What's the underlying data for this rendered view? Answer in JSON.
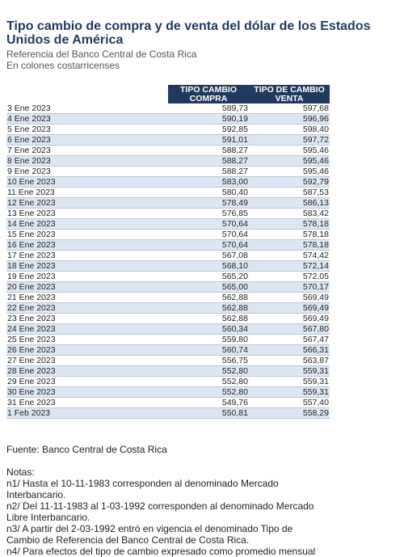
{
  "title": "Tipo cambio de compra y de venta del dólar de los Estados Unidos de América",
  "subtitle1": "Referencia del Banco Central de Costa Rica",
  "subtitle2": "En colones costarricenses",
  "headers": {
    "compra": "TIPO CAMBIO COMPRA",
    "venta": "TIPO DE CAMBIO VENTA"
  },
  "colors": {
    "header_bg": "#1f3a5f",
    "row_alt": "#dde7f3",
    "title": "#1f3a5f"
  },
  "rows": [
    {
      "date": "3 Ene 2023",
      "compra": "589,73",
      "venta": "597,68"
    },
    {
      "date": "4 Ene 2023",
      "compra": "590,19",
      "venta": "596,96"
    },
    {
      "date": "5 Ene 2023",
      "compra": "592,85",
      "venta": "598,40"
    },
    {
      "date": "6 Ene 2023",
      "compra": "591,01",
      "venta": "597,72"
    },
    {
      "date": "7 Ene 2023",
      "compra": "588,27",
      "venta": "595,46"
    },
    {
      "date": "8 Ene 2023",
      "compra": "588,27",
      "venta": "595,46"
    },
    {
      "date": "9 Ene 2023",
      "compra": "588,27",
      "venta": "595,46"
    },
    {
      "date": "10 Ene 2023",
      "compra": "583,00",
      "venta": "592,79"
    },
    {
      "date": "11 Ene 2023",
      "compra": "580,40",
      "venta": "587,53"
    },
    {
      "date": "12 Ene 2023",
      "compra": "578,49",
      "venta": "586,13"
    },
    {
      "date": "13 Ene 2023",
      "compra": "576,85",
      "venta": "583,42"
    },
    {
      "date": "14 Ene 2023",
      "compra": "570,64",
      "venta": "578,18"
    },
    {
      "date": "15 Ene 2023",
      "compra": "570,64",
      "venta": "578,18"
    },
    {
      "date": "16 Ene 2023",
      "compra": "570,64",
      "venta": "578,18"
    },
    {
      "date": "17 Ene 2023",
      "compra": "567,08",
      "venta": "574,42"
    },
    {
      "date": "18 Ene 2023",
      "compra": "568,10",
      "venta": "572,14"
    },
    {
      "date": "19 Ene 2023",
      "compra": "565,20",
      "venta": "572,05"
    },
    {
      "date": "20 Ene 2023",
      "compra": "565,00",
      "venta": "570,17"
    },
    {
      "date": "21 Ene 2023",
      "compra": "562,88",
      "venta": "569,49"
    },
    {
      "date": "22 Ene 2023",
      "compra": "562,88",
      "venta": "569,49"
    },
    {
      "date": "23 Ene 2023",
      "compra": "562,88",
      "venta": "569,49"
    },
    {
      "date": "24 Ene 2023",
      "compra": "560,34",
      "venta": "567,80"
    },
    {
      "date": "25 Ene 2023",
      "compra": "559,80",
      "venta": "567,47"
    },
    {
      "date": "26 Ene 2023",
      "compra": "560,74",
      "venta": "566,31"
    },
    {
      "date": "27 Ene 2023",
      "compra": "556,75",
      "venta": "563,87"
    },
    {
      "date": "28 Ene 2023",
      "compra": "552,80",
      "venta": "559,31"
    },
    {
      "date": "29 Ene 2023",
      "compra": "552,80",
      "venta": "559,31"
    },
    {
      "date": "30 Ene 2023",
      "compra": "552,80",
      "venta": "559,31"
    },
    {
      "date": "31 Ene 2023",
      "compra": "549,76",
      "venta": "557,40"
    },
    {
      "date": "1 Feb 2023",
      "compra": "550,81",
      "venta": "558,29"
    }
  ],
  "source": "Fuente: Banco Central de Costa Rica",
  "notes_heading": "Notas:",
  "notes": [
    "n1/ Hasta el 10-11-1983 corresponden al denominado Mercado Interbancario.",
    "n2/ Del 11-11-1983 al 1-03-1992 corresponden al denominado Mercado Libre Interbancario.",
    "n3/ A partir del 2-03-1992 entró en vigencia el denominado Tipo de Cambio de Referencia del Banco Central de Costa Rica.",
    "n4/ Para efectos del tipo de cambio expresado como promedio mensual"
  ]
}
